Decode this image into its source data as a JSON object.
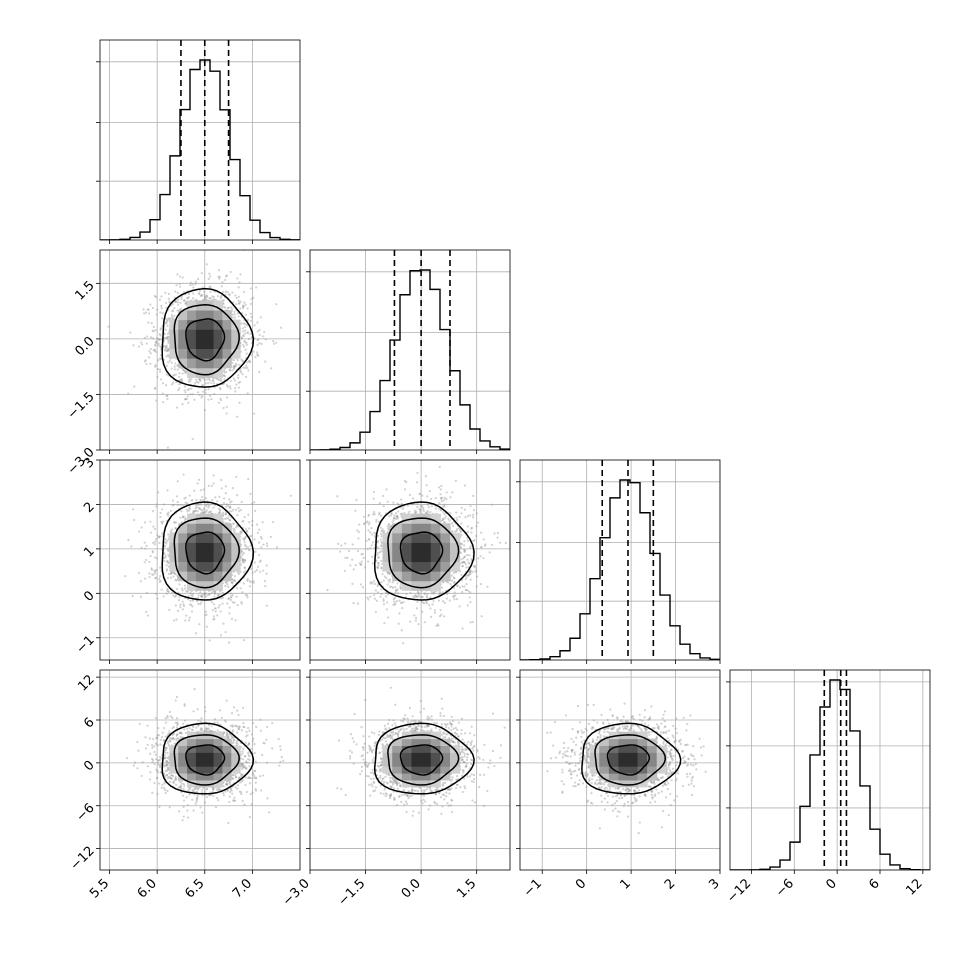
{
  "chart_data": {
    "type": "corner",
    "parameters": [
      "",
      "",
      "",
      ""
    ],
    "grid": true,
    "colors": {
      "line": "#000000",
      "grid": "#b0b0b0",
      "points": "#9a9a9a"
    },
    "axes": [
      {
        "range": [
          5.4,
          7.5
        ],
        "ticks": [
          5.5,
          6.0,
          6.5,
          7.0
        ],
        "tick_labels": [
          "5.5",
          "6.0",
          "6.5",
          "7.0"
        ]
      },
      {
        "range": [
          -3.0,
          2.4
        ],
        "ticks": [
          -3.0,
          -1.5,
          0.0,
          1.5
        ],
        "tick_labels": [
          "−3.0",
          "−1.5",
          "0.0",
          "1.5"
        ]
      },
      {
        "range": [
          -1.5,
          3.0
        ],
        "ticks": [
          -1,
          0,
          1,
          2,
          3
        ],
        "tick_labels": [
          "−1",
          "0",
          "1",
          "2",
          "3"
        ]
      },
      {
        "range": [
          -15,
          13
        ],
        "ticks": [
          -12,
          -6,
          0,
          6,
          12
        ],
        "tick_labels": [
          "−12",
          "−6",
          "0",
          "6",
          "12"
        ]
      }
    ],
    "marginals": [
      {
        "mean": 6.5,
        "sd": 0.25,
        "quantiles": [
          6.25,
          6.5,
          6.75
        ],
        "peak_fraction": 0.9
      },
      {
        "mean": 0.0,
        "sd": 0.7,
        "quantiles": [
          -0.72,
          0.0,
          0.78
        ],
        "peak_fraction": 0.9
      },
      {
        "mean": 0.93,
        "sd": 0.58,
        "quantiles": [
          0.35,
          0.93,
          1.5
        ],
        "peak_fraction": 0.9
      },
      {
        "mean": 0.0,
        "sd": 3.0,
        "quantiles": [
          -1.8,
          0.5,
          1.3
        ],
        "peak_fraction": 0.95
      }
    ],
    "pairs": [
      {
        "row": 1,
        "col": 0,
        "center": [
          6.5,
          0.0
        ],
        "sd": [
          0.25,
          0.7
        ],
        "n_points": 1800
      },
      {
        "row": 2,
        "col": 0,
        "center": [
          6.5,
          0.93
        ],
        "sd": [
          0.25,
          0.58
        ],
        "n_points": 1800
      },
      {
        "row": 2,
        "col": 1,
        "center": [
          0.0,
          0.93
        ],
        "sd": [
          0.7,
          0.58
        ],
        "n_points": 1800
      },
      {
        "row": 3,
        "col": 0,
        "center": [
          6.5,
          0.5
        ],
        "sd": [
          0.25,
          2.6
        ],
        "n_points": 1800
      },
      {
        "row": 3,
        "col": 1,
        "center": [
          0.0,
          0.5
        ],
        "sd": [
          0.7,
          2.6
        ],
        "n_points": 1800
      },
      {
        "row": 3,
        "col": 2,
        "center": [
          0.93,
          0.5
        ],
        "sd": [
          0.58,
          2.6
        ],
        "n_points": 1800
      }
    ],
    "contour_levels_sigma": [
      0.8,
      1.35,
      1.9
    ]
  }
}
